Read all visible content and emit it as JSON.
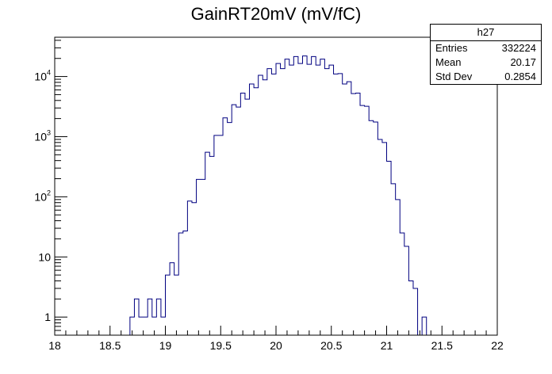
{
  "chart_data": {
    "type": "histogram",
    "title": "GainRT20mV (mV/fC)",
    "xlabel": "",
    "ylabel": "",
    "xlim": [
      18,
      22
    ],
    "ylim": [
      0.5,
      45000
    ],
    "yscale": "log",
    "bin_width": 0.04,
    "line_color": "#000080",
    "x_ticks": [
      "18",
      "18.5",
      "19",
      "19.5",
      "20",
      "20.5",
      "21",
      "21.5",
      "22"
    ],
    "y_ticks": [
      {
        "value": 1,
        "base": "1",
        "exp": ""
      },
      {
        "value": 10,
        "base": "10",
        "exp": ""
      },
      {
        "value": 100,
        "base": "10",
        "exp": "2"
      },
      {
        "value": 1000,
        "base": "10",
        "exp": "3"
      },
      {
        "value": 10000,
        "base": "10",
        "exp": "4"
      }
    ],
    "bins": [
      {
        "x": 18.68,
        "y": 1
      },
      {
        "x": 18.72,
        "y": 2
      },
      {
        "x": 18.76,
        "y": 1
      },
      {
        "x": 18.8,
        "y": 1
      },
      {
        "x": 18.84,
        "y": 2
      },
      {
        "x": 18.88,
        "y": 1
      },
      {
        "x": 18.92,
        "y": 2
      },
      {
        "x": 18.96,
        "y": 1
      },
      {
        "x": 19.0,
        "y": 5
      },
      {
        "x": 19.04,
        "y": 8
      },
      {
        "x": 19.08,
        "y": 5
      },
      {
        "x": 19.12,
        "y": 25
      },
      {
        "x": 19.16,
        "y": 27
      },
      {
        "x": 19.2,
        "y": 85
      },
      {
        "x": 19.24,
        "y": 80
      },
      {
        "x": 19.28,
        "y": 195
      },
      {
        "x": 19.32,
        "y": 195
      },
      {
        "x": 19.36,
        "y": 550
      },
      {
        "x": 19.4,
        "y": 470
      },
      {
        "x": 19.44,
        "y": 1050
      },
      {
        "x": 19.48,
        "y": 1050
      },
      {
        "x": 19.52,
        "y": 2050
      },
      {
        "x": 19.56,
        "y": 1720
      },
      {
        "x": 19.6,
        "y": 3400
      },
      {
        "x": 19.64,
        "y": 3100
      },
      {
        "x": 19.68,
        "y": 5300
      },
      {
        "x": 19.72,
        "y": 4200
      },
      {
        "x": 19.76,
        "y": 7500
      },
      {
        "x": 19.8,
        "y": 6500
      },
      {
        "x": 19.84,
        "y": 10500
      },
      {
        "x": 19.88,
        "y": 8800
      },
      {
        "x": 19.92,
        "y": 13500
      },
      {
        "x": 19.96,
        "y": 11000
      },
      {
        "x": 20.0,
        "y": 16500
      },
      {
        "x": 20.04,
        "y": 13500
      },
      {
        "x": 20.08,
        "y": 19500
      },
      {
        "x": 20.12,
        "y": 15500
      },
      {
        "x": 20.16,
        "y": 21500
      },
      {
        "x": 20.2,
        "y": 16500
      },
      {
        "x": 20.24,
        "y": 22000
      },
      {
        "x": 20.28,
        "y": 16000
      },
      {
        "x": 20.32,
        "y": 21500
      },
      {
        "x": 20.36,
        "y": 15500
      },
      {
        "x": 20.4,
        "y": 19500
      },
      {
        "x": 20.44,
        "y": 13500
      },
      {
        "x": 20.48,
        "y": 15500
      },
      {
        "x": 20.52,
        "y": 11000
      },
      {
        "x": 20.56,
        "y": 11200
      },
      {
        "x": 20.6,
        "y": 7500
      },
      {
        "x": 20.64,
        "y": 8200
      },
      {
        "x": 20.68,
        "y": 5200
      },
      {
        "x": 20.72,
        "y": 5300
      },
      {
        "x": 20.76,
        "y": 3300
      },
      {
        "x": 20.8,
        "y": 3200
      },
      {
        "x": 20.84,
        "y": 1850
      },
      {
        "x": 20.88,
        "y": 1750
      },
      {
        "x": 20.92,
        "y": 900
      },
      {
        "x": 20.96,
        "y": 800
      },
      {
        "x": 21.0,
        "y": 390
      },
      {
        "x": 21.04,
        "y": 165
      },
      {
        "x": 21.08,
        "y": 90
      },
      {
        "x": 21.12,
        "y": 25
      },
      {
        "x": 21.16,
        "y": 15
      },
      {
        "x": 21.2,
        "y": 4
      },
      {
        "x": 21.24,
        "y": 3
      },
      {
        "x": 21.28,
        "y": 0.5
      },
      {
        "x": 21.32,
        "y": 1
      }
    ]
  },
  "stats": {
    "name": "h27",
    "rows": [
      {
        "label": "Entries",
        "value": "332224"
      },
      {
        "label": "Mean",
        "value": "20.17"
      },
      {
        "label": "Std Dev",
        "value": "0.2854"
      }
    ]
  }
}
